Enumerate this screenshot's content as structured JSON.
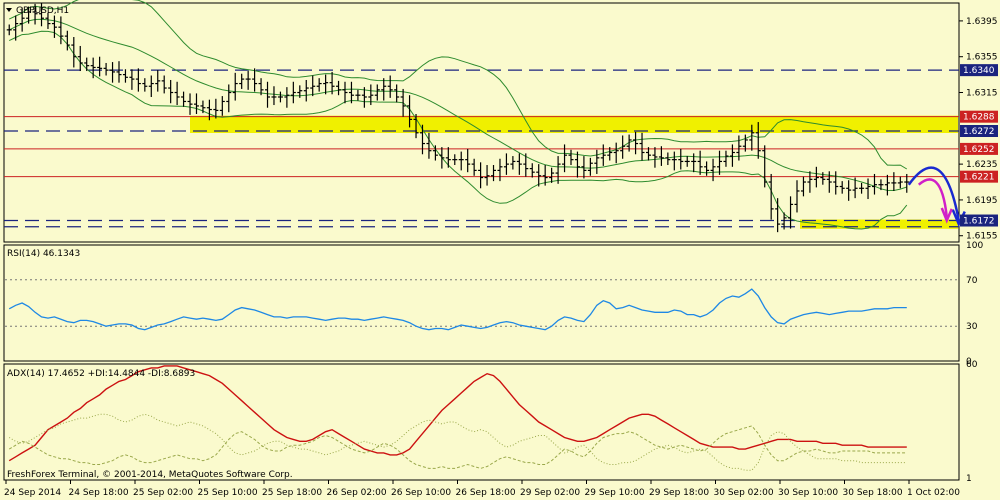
{
  "window": {
    "symbol_title": "GBPUSD,H1",
    "copyright": "FreshForex Terminal, © 2001-2014, MetaQuotes Software Corp."
  },
  "theme": {
    "background": "#fafacd",
    "grid": "#000000",
    "candle": "#000000",
    "bollinger": "#2e8b2e",
    "support_resistance_red": "#cc2222",
    "dashed_blue": "#1a237e",
    "highlight_yellow": "#f0f000",
    "rsi_line": "#1e88e5",
    "adx_main": "#cc1111",
    "adx_di": "#9aa84b",
    "arrow_blue": "#1a2ad0",
    "arrow_magenta": "#d020c8"
  },
  "chart_data": [
    {
      "type": "candlestick",
      "symbol": "GBPUSD",
      "timeframe": "H1",
      "ylim": [
        1.6148,
        1.6415
      ],
      "y_ticks": [
        1.6395,
        1.6355,
        1.6315,
        1.6235,
        1.6195,
        1.6155
      ],
      "x_ticks": [
        "24 Sep 2014",
        "24 Sep 18:00",
        "25 Sep 02:00",
        "25 Sep 10:00",
        "25 Sep 18:00",
        "26 Sep 02:00",
        "26 Sep 10:00",
        "26 Sep 18:00",
        "29 Sep 02:00",
        "29 Sep 10:00",
        "29 Sep 18:00",
        "30 Sep 02:00",
        "30 Sep 10:00",
        "30 Sep 18:00",
        "1 Oct 02:00"
      ],
      "price_labels": [
        {
          "text": "1.6340",
          "value": 1.634,
          "style": "blue"
        },
        {
          "text": "1.6288",
          "value": 1.6288,
          "style": "red"
        },
        {
          "text": "1.6272",
          "value": 1.6272,
          "style": "blue"
        },
        {
          "text": "1.6252",
          "value": 1.6252,
          "style": "red"
        },
        {
          "text": "1.6221",
          "value": 1.6221,
          "style": "red"
        },
        {
          "text": "1.6172",
          "value": 1.6172,
          "style": "blue"
        }
      ],
      "solid_levels": [
        1.6288,
        1.6252,
        1.6221
      ],
      "dashed_levels": [
        1.634,
        1.6272,
        1.6172,
        1.6165
      ],
      "closes": [
        1.6385,
        1.6392,
        1.6398,
        1.6405,
        1.6403,
        1.6398,
        1.6392,
        1.6388,
        1.6378,
        1.6368,
        1.6355,
        1.6348,
        1.6345,
        1.6343,
        1.6342,
        1.634,
        1.6338,
        1.6335,
        1.6332,
        1.633,
        1.6325,
        1.6322,
        1.6325,
        1.6328,
        1.632,
        1.6315,
        1.631,
        1.6305,
        1.6302,
        1.63,
        1.6298,
        1.6296,
        1.6295,
        1.6305,
        1.6315,
        1.6325,
        1.633,
        1.633,
        1.6325,
        1.6318,
        1.631,
        1.631,
        1.631,
        1.6312,
        1.6315,
        1.6317,
        1.632,
        1.6322,
        1.6325,
        1.6326,
        1.6322,
        1.6318,
        1.6315,
        1.6312,
        1.6312,
        1.631,
        1.6312,
        1.6318,
        1.6322,
        1.6318,
        1.631,
        1.63,
        1.6285,
        1.627,
        1.6258,
        1.625,
        1.6245,
        1.6242,
        1.624,
        1.624,
        1.624,
        1.6235,
        1.6228,
        1.622,
        1.6222,
        1.6228,
        1.6232,
        1.6235,
        1.6238,
        1.6235,
        1.623,
        1.6226,
        1.6222,
        1.622,
        1.6225,
        1.6235,
        1.6245,
        1.624,
        1.6232,
        1.6228,
        1.6236,
        1.6242,
        1.6245,
        1.6248,
        1.625,
        1.6255,
        1.6262,
        1.6258,
        1.6248,
        1.6245,
        1.6243,
        1.6242,
        1.624,
        1.624,
        1.6238,
        1.6238,
        1.6238,
        1.6232,
        1.6228,
        1.6232,
        1.6238,
        1.6244,
        1.6248,
        1.6255,
        1.6262,
        1.627,
        1.625,
        1.6215,
        1.6185,
        1.6168,
        1.6175,
        1.619,
        1.6205,
        1.6215,
        1.6218,
        1.622,
        1.6218,
        1.6215,
        1.621,
        1.6208,
        1.6206,
        1.6208,
        1.6208,
        1.621,
        1.6212,
        1.6212,
        1.6214,
        1.6214,
        1.6215,
        1.6215
      ],
      "projection": [
        "up to 1.6238 then down to 1.6160 (blue)",
        "down to 1.6170 (magenta)"
      ]
    },
    {
      "type": "line",
      "title": "RSI(14) 46.1343",
      "ylim": [
        0,
        100
      ],
      "y_ticks": [
        100,
        70,
        30,
        0
      ],
      "values": [
        45,
        48,
        50,
        47,
        42,
        38,
        37,
        38,
        36,
        34,
        33,
        35,
        35,
        34,
        32,
        30,
        31,
        32,
        32,
        31,
        28,
        27,
        29,
        31,
        32,
        34,
        36,
        38,
        37,
        36,
        37,
        36,
        35,
        36,
        40,
        44,
        46,
        45,
        44,
        42,
        40,
        38,
        38,
        37,
        38,
        38,
        38,
        37,
        36,
        35,
        36,
        37,
        37,
        36,
        36,
        35,
        36,
        37,
        38,
        37,
        36,
        35,
        33,
        30,
        28,
        27,
        28,
        28,
        27,
        29,
        31,
        30,
        29,
        28,
        29,
        31,
        33,
        34,
        33,
        31,
        30,
        29,
        28,
        27,
        30,
        35,
        38,
        37,
        35,
        34,
        40,
        48,
        52,
        50,
        45,
        46,
        48,
        46,
        44,
        43,
        42,
        42,
        42,
        44,
        43,
        40,
        40,
        38,
        40,
        44,
        50,
        54,
        56,
        55,
        58,
        62,
        56,
        46,
        38,
        33,
        32,
        36,
        38,
        40,
        41,
        42,
        41,
        40,
        41,
        42,
        43,
        43,
        43,
        44,
        45,
        45,
        45,
        46,
        46,
        46
      ]
    },
    {
      "type": "line",
      "title": "ADX(14) 17.4652 +DI:14.4844 -DI:8.6893",
      "ylim": [
        0,
        60
      ],
      "y_ticks": [
        60,
        1
      ],
      "series": [
        {
          "name": "ADX",
          "values": [
            10,
            12,
            14,
            16,
            18,
            22,
            26,
            28,
            30,
            32,
            35,
            37,
            40,
            42,
            44,
            47,
            49,
            51,
            52,
            54,
            56,
            57,
            58,
            58,
            59,
            59,
            59,
            58,
            57,
            56,
            55,
            54,
            52,
            50,
            47,
            44,
            41,
            38,
            35,
            32,
            29,
            26,
            24,
            22,
            21,
            20,
            20,
            21,
            23,
            25,
            26,
            24,
            22,
            20,
            18,
            16,
            15,
            14,
            14,
            13,
            13,
            14,
            16,
            20,
            24,
            28,
            32,
            36,
            39,
            42,
            45,
            48,
            51,
            53,
            55,
            54,
            51,
            47,
            43,
            39,
            36,
            33,
            30,
            28,
            26,
            24,
            22,
            21,
            20,
            20,
            21,
            22,
            24,
            26,
            28,
            30,
            32,
            33,
            34,
            34,
            33,
            31,
            29,
            27,
            25,
            23,
            21,
            19,
            18,
            17,
            17,
            17,
            17,
            16,
            16,
            17,
            18,
            19,
            20,
            21,
            21,
            21,
            20,
            20,
            20,
            20,
            19,
            19,
            19,
            18,
            18,
            18,
            18,
            17,
            17,
            17,
            17,
            17,
            17,
            17
          ]
        },
        {
          "name": "+DI",
          "values": [
            16,
            18,
            20,
            19,
            17,
            15,
            13,
            12,
            11,
            11,
            10,
            9,
            9,
            8,
            8,
            9,
            10,
            12,
            13,
            12,
            10,
            9,
            9,
            10,
            11,
            12,
            13,
            12,
            11,
            11,
            10,
            11,
            13,
            17,
            21,
            24,
            25,
            23,
            21,
            18,
            16,
            15,
            15,
            17,
            18,
            18,
            19,
            20,
            22,
            23,
            22,
            20,
            18,
            16,
            15,
            14,
            15,
            17,
            19,
            18,
            16,
            13,
            10,
            8,
            7,
            6,
            6,
            7,
            6,
            6,
            7,
            8,
            7,
            6,
            7,
            9,
            11,
            12,
            11,
            10,
            9,
            9,
            8,
            8,
            10,
            13,
            16,
            15,
            13,
            12,
            15,
            19,
            22,
            23,
            24,
            24,
            25,
            24,
            22,
            20,
            18,
            17,
            16,
            17,
            18,
            17,
            16,
            15,
            16,
            19,
            22,
            24,
            25,
            26,
            27,
            28,
            24,
            18,
            13,
            10,
            10,
            12,
            14,
            15,
            15,
            16,
            15,
            14,
            14,
            15,
            15,
            15,
            15,
            15,
            14,
            14,
            14,
            14,
            14,
            14
          ]
        },
        {
          "name": "-DI",
          "values": [
            22,
            20,
            19,
            20,
            22,
            24,
            26,
            27,
            29,
            30,
            31,
            32,
            32,
            33,
            34,
            34,
            33,
            31,
            30,
            31,
            33,
            34,
            33,
            31,
            30,
            29,
            28,
            29,
            30,
            29,
            28,
            26,
            24,
            21,
            17,
            14,
            13,
            14,
            15,
            17,
            19,
            20,
            20,
            18,
            17,
            16,
            16,
            15,
            14,
            13,
            14,
            15,
            17,
            18,
            19,
            20,
            19,
            18,
            17,
            18,
            20,
            23,
            26,
            28,
            30,
            31,
            30,
            29,
            30,
            30,
            28,
            26,
            25,
            26,
            25,
            22,
            19,
            17,
            18,
            20,
            21,
            22,
            23,
            23,
            20,
            17,
            14,
            15,
            17,
            18,
            15,
            11,
            9,
            8,
            8,
            9,
            9,
            10,
            12,
            14,
            16,
            17,
            18,
            17,
            15,
            14,
            15,
            16,
            15,
            12,
            9,
            7,
            6,
            6,
            5,
            5,
            9,
            17,
            23,
            25,
            24,
            20,
            17,
            15,
            13,
            11,
            11,
            11,
            11,
            10,
            10,
            10,
            9,
            9,
            9,
            9,
            9,
            9,
            9,
            9
          ]
        }
      ]
    }
  ]
}
